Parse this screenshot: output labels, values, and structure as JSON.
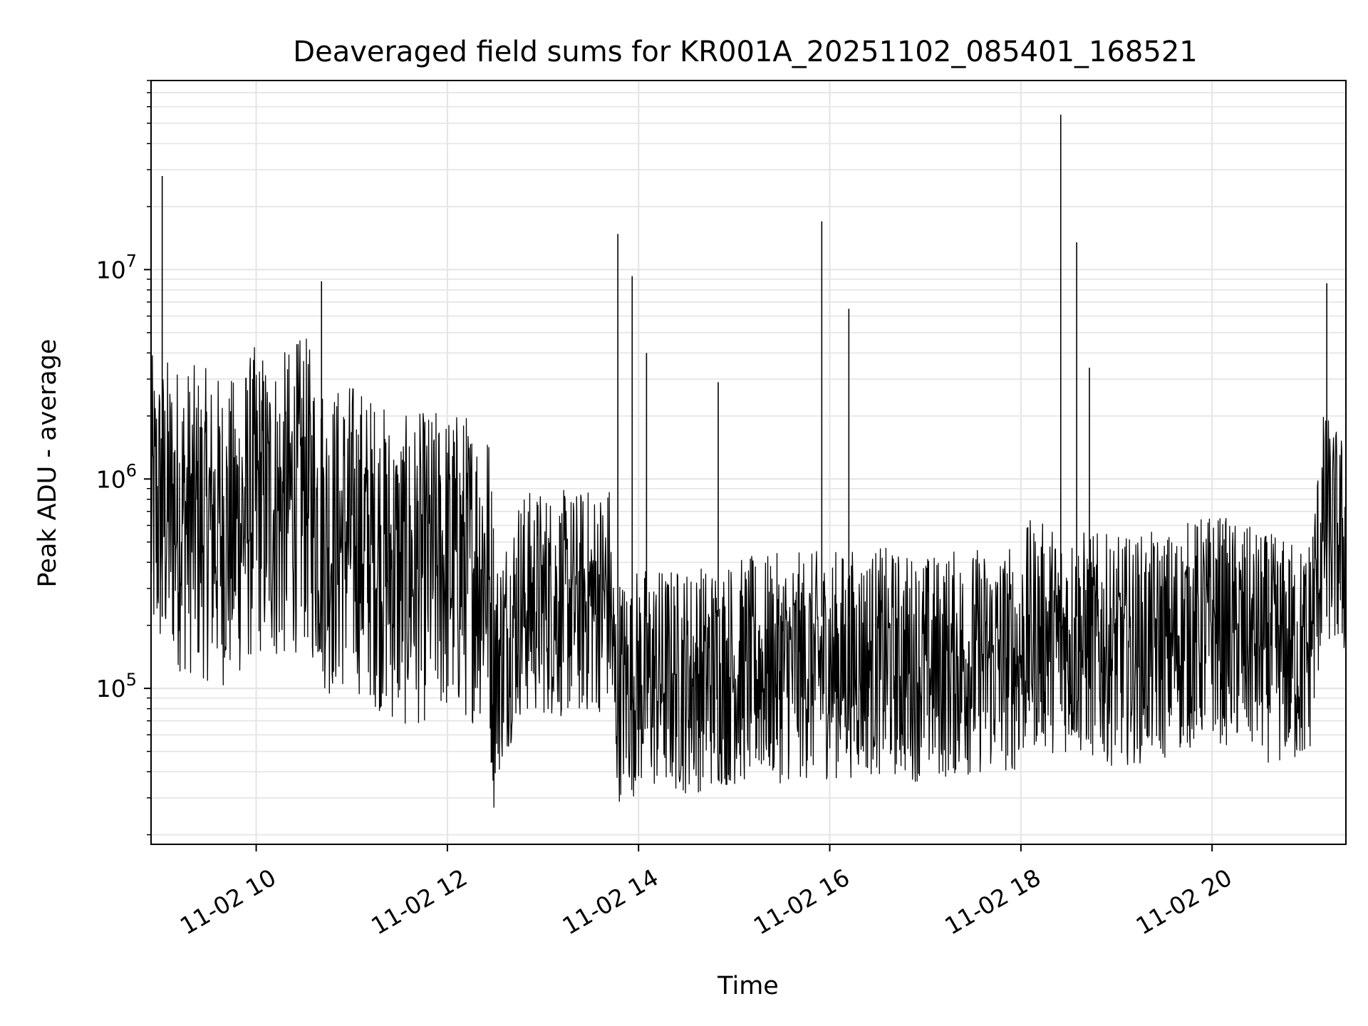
{
  "chart_data": {
    "type": "line",
    "title": "Deaveraged field sums for KR001A_20251102_085401_168521",
    "xlabel": "Time",
    "ylabel": "Peak ADU - average",
    "yscale": "log",
    "ylim": [
      18000,
      80000000
    ],
    "xlim": [
      "11-02 08:54",
      "11-02 21:24"
    ],
    "grid": true,
    "line_color": "#000000",
    "x_ticks": [
      {
        "value": "11-02 10:00",
        "label": "11-02 10"
      },
      {
        "value": "11-02 12:00",
        "label": "11-02 12"
      },
      {
        "value": "11-02 14:00",
        "label": "11-02 14"
      },
      {
        "value": "11-02 16:00",
        "label": "11-02 16"
      },
      {
        "value": "11-02 18:00",
        "label": "11-02 18"
      },
      {
        "value": "11-02 20:00",
        "label": "11-02 20"
      }
    ],
    "y_ticks": [
      {
        "value": 100000,
        "base": "10",
        "exp": "5"
      },
      {
        "value": 1000000,
        "base": "10",
        "exp": "6"
      },
      {
        "value": 10000000,
        "base": "10",
        "exp": "7"
      }
    ],
    "series": [
      {
        "x": [
          "11-02 08:54",
          "11-02 09:00",
          "11-02 09:07",
          "11-02 09:15",
          "11-02 09:30",
          "11-02 09:45",
          "11-02 10:00",
          "11-02 10:15",
          "11-02 10:30",
          "11-02 10:45",
          "11-02 11:00",
          "11-02 11:15",
          "11-02 11:30",
          "11-02 11:45",
          "11-02 12:00",
          "11-02 12:15",
          "11-02 12:25",
          "11-02 12:30",
          "11-02 12:45",
          "11-02 13:00",
          "11-02 13:15",
          "11-02 13:30",
          "11-02 13:42",
          "11-02 13:45",
          "11-02 14:00",
          "11-02 14:30",
          "11-02 15:00",
          "11-02 15:30",
          "11-02 16:00",
          "11-02 16:30",
          "11-02 17:00",
          "11-02 17:30",
          "11-02 18:00",
          "11-02 18:05",
          "11-02 18:30",
          "11-02 19:00",
          "11-02 19:30",
          "11-02 20:00",
          "11-02 20:30",
          "11-02 21:00",
          "11-02 21:10",
          "11-02 21:24"
        ],
        "values": [
          700000,
          700000,
          700000,
          650000,
          600000,
          550000,
          800000,
          700000,
          900000,
          500000,
          550000,
          450000,
          350000,
          380000,
          400000,
          380000,
          400000,
          120000,
          250000,
          260000,
          250000,
          260000,
          280000,
          100000,
          110000,
          110000,
          120000,
          125000,
          130000,
          135000,
          125000,
          135000,
          140000,
          180000,
          170000,
          150000,
          160000,
          200000,
          160000,
          140000,
          600000,
          450000
        ]
      }
    ],
    "spikes": [
      {
        "x": "11-02 09:01",
        "value": 28000000
      },
      {
        "x": "11-02 10:41",
        "value": 8800000
      },
      {
        "x": "11-02 13:47",
        "value": 14800000
      },
      {
        "x": "11-02 13:56",
        "value": 9300000
      },
      {
        "x": "11-02 14:05",
        "value": 4000000
      },
      {
        "x": "11-02 14:50",
        "value": 2900000
      },
      {
        "x": "11-02 15:55",
        "value": 17000000
      },
      {
        "x": "11-02 16:12",
        "value": 6500000
      },
      {
        "x": "11-02 18:25",
        "value": 55000000
      },
      {
        "x": "11-02 18:35",
        "value": 13500000
      },
      {
        "x": "11-02 18:43",
        "value": 3400000
      },
      {
        "x": "11-02 21:12",
        "value": 8600000
      }
    ]
  }
}
